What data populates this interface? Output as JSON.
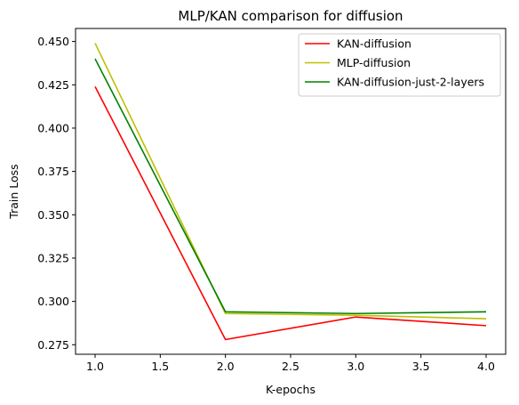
{
  "chart_data": {
    "type": "line",
    "title": "MLP/KAN comparison for diffusion",
    "xlabel": "K-epochs",
    "ylabel": "Train Loss",
    "xlim": [
      0.85,
      4.15
    ],
    "ylim": [
      0.2695,
      0.4575
    ],
    "xticks": [
      1.0,
      1.5,
      2.0,
      2.5,
      3.0,
      3.5,
      4.0
    ],
    "xtick_labels": [
      "1.0",
      "1.5",
      "2.0",
      "2.5",
      "3.0",
      "3.5",
      "4.0"
    ],
    "yticks": [
      0.275,
      0.3,
      0.325,
      0.35,
      0.375,
      0.4,
      0.425,
      0.45
    ],
    "ytick_labels": [
      "0.275",
      "0.300",
      "0.325",
      "0.350",
      "0.375",
      "0.400",
      "0.425",
      "0.450"
    ],
    "grid": false,
    "legend_position": "top-right",
    "x": [
      1.0,
      2.0,
      3.0,
      4.0
    ],
    "series": [
      {
        "name": "KAN-diffusion",
        "color": "#ff0000",
        "values": [
          0.424,
          0.278,
          0.291,
          0.286
        ]
      },
      {
        "name": "MLP-diffusion",
        "color": "#bfbf00",
        "values": [
          0.449,
          0.293,
          0.292,
          0.29
        ]
      },
      {
        "name": "KAN-diffusion-just-2-layers",
        "color": "#008000",
        "values": [
          0.44,
          0.294,
          0.293,
          0.294
        ]
      }
    ]
  }
}
